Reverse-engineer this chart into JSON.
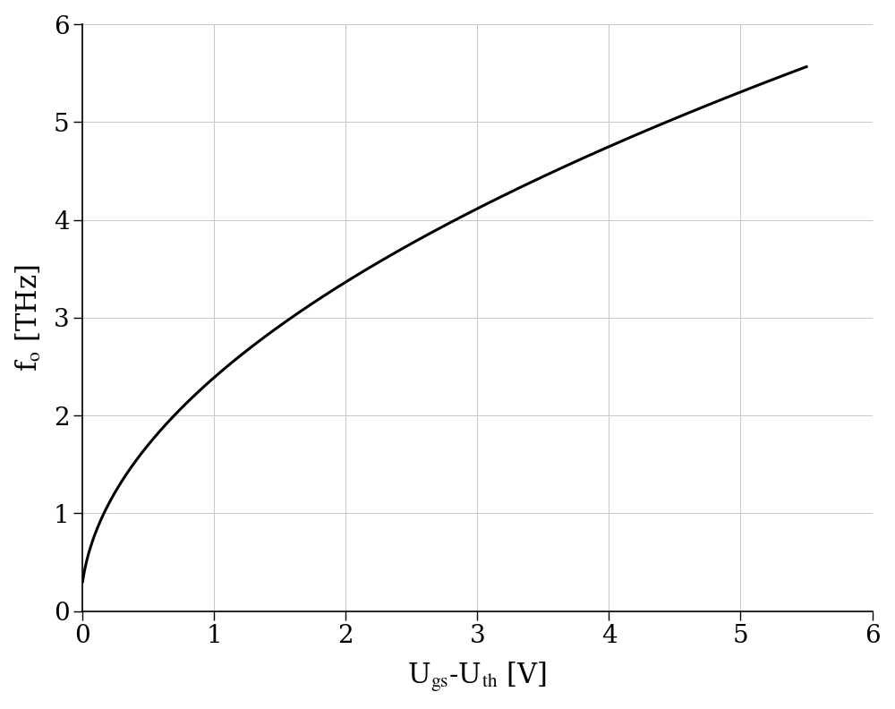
{
  "xlim": [
    0,
    6
  ],
  "ylim": [
    0,
    6
  ],
  "xticks": [
    0,
    1,
    2,
    3,
    4,
    5,
    6
  ],
  "yticks": [
    0,
    1,
    2,
    3,
    4,
    5,
    6
  ],
  "xlabel": "U$_{gs}$-U$_{th}$ [V]",
  "ylabel": "f$_o$ [THz]",
  "line_color": "#000000",
  "line_width": 2.2,
  "grid_color": "#c8c8c8",
  "grid_linewidth": 0.7,
  "background_color": "#ffffff",
  "curve_a": 2.37,
  "curve_b": 0.016,
  "x_start": 0.0,
  "x_end": 5.5,
  "tick_fontsize": 20,
  "label_fontsize": 22
}
